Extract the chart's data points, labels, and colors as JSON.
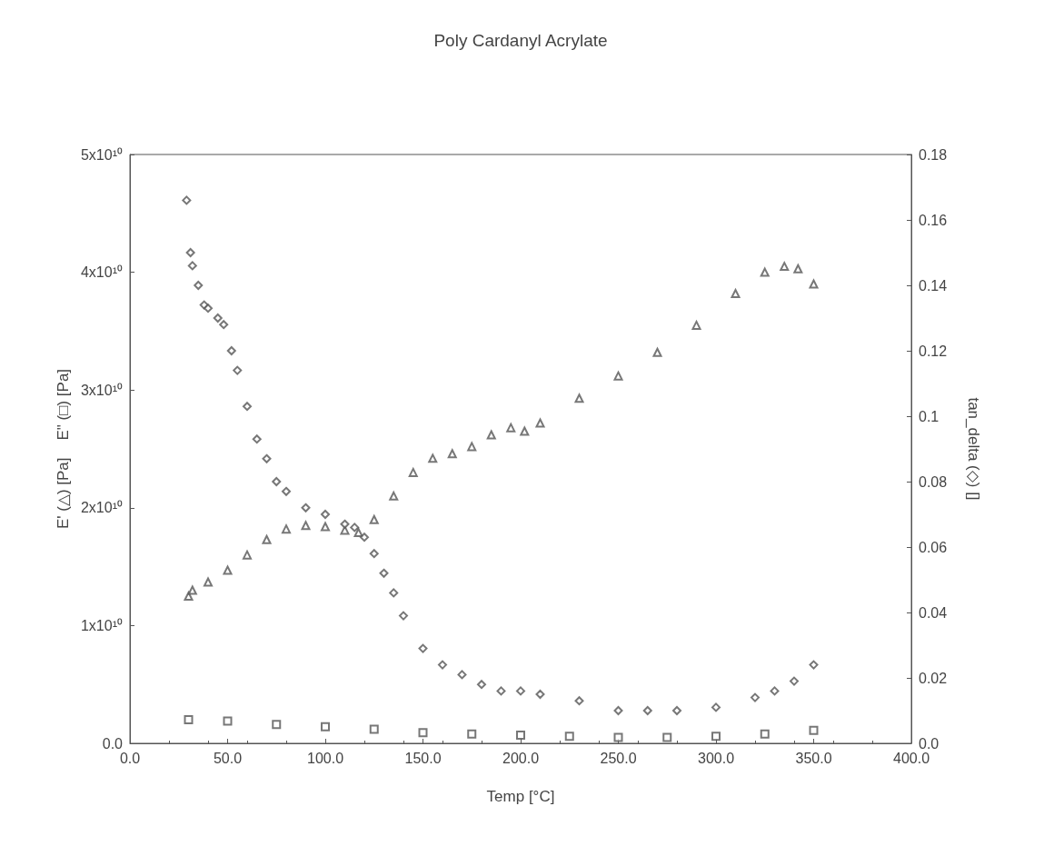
{
  "chart_data": {
    "type": "scatter",
    "title": "Poly Cardanyl Acrylate",
    "xlabel": "Temp [°C]",
    "ylabel": "E' (△) [Pa]    E\" (□) [Pa]",
    "y2label": "tan_delta (◇) []",
    "xlim": [
      0,
      400
    ],
    "xticks": [
      {
        "value": 0,
        "label": "0.0"
      },
      {
        "value": 50,
        "label": "50.0"
      },
      {
        "value": 100,
        "label": "100.0"
      },
      {
        "value": 150,
        "label": "150.0"
      },
      {
        "value": 200,
        "label": "200.0"
      },
      {
        "value": 250,
        "label": "250.0"
      },
      {
        "value": 300,
        "label": "300.0"
      },
      {
        "value": 350,
        "label": "350.0"
      },
      {
        "value": 400,
        "label": "400.0"
      }
    ],
    "ylim": [
      0,
      50000000000
    ],
    "yticks": [
      {
        "value": 0,
        "label": "0.0"
      },
      {
        "value": 10000000000,
        "label": "1x10¹⁰"
      },
      {
        "value": 20000000000,
        "label": "2x10¹⁰"
      },
      {
        "value": 30000000000,
        "label": "3x10¹⁰"
      },
      {
        "value": 40000000000,
        "label": "4x10¹⁰"
      },
      {
        "value": 50000000000,
        "label": "5x10¹⁰"
      }
    ],
    "y2lim": [
      0,
      0.18
    ],
    "y2ticks": [
      {
        "value": 0,
        "label": "0.0"
      },
      0.02,
      0.04,
      0.06,
      0.08,
      0.1,
      0.12,
      0.14,
      0.16,
      0.18
    ],
    "grid": false,
    "legend": false,
    "series": [
      {
        "marker": "triangle",
        "color": "#555555",
        "x": [
          30,
          32,
          40,
          50,
          60,
          70,
          80,
          90,
          100,
          110,
          117,
          125,
          135,
          145,
          155,
          165,
          175,
          185,
          195,
          202,
          210,
          230,
          250,
          270,
          290,
          310,
          325,
          335,
          342,
          350
        ],
        "values": [
          12500000000,
          13000000000,
          13700000000,
          14700000000,
          16000000000,
          17300000000,
          18200000000,
          18500000000,
          18400000000,
          18100000000,
          17900000000,
          19000000000,
          21000000000,
          23000000000,
          24200000000,
          24600000000,
          25200000000,
          26200000000,
          26800000000,
          26500000000,
          27200000000,
          29300000000,
          31200000000,
          33200000000,
          35500000000,
          38200000000,
          40000000000,
          40500000000,
          40300000000,
          39000000000
        ]
      },
      {
        "marker": "square",
        "color": "#555555",
        "x": [
          30,
          50,
          75,
          100,
          125,
          150,
          175,
          200,
          225,
          250,
          275,
          300,
          325,
          350
        ],
        "values": [
          2000000000,
          1900000000,
          1600000000,
          1400000000,
          1200000000,
          900000000,
          800000000,
          700000000,
          600000000,
          500000000,
          500000000,
          600000000,
          800000000,
          1100000000
        ]
      },
      {
        "marker": "diamond",
        "color": "#555555",
        "axis": "y2",
        "x": [
          29,
          31,
          32,
          35,
          38,
          40,
          45,
          48,
          52,
          55,
          60,
          65,
          70,
          75,
          80,
          90,
          100,
          110,
          115,
          120,
          125,
          130,
          135,
          140,
          150,
          160,
          170,
          180,
          190,
          200,
          210,
          230,
          250,
          265,
          280,
          300,
          320,
          330,
          340,
          350
        ],
        "values": [
          0.166,
          0.15,
          0.146,
          0.14,
          0.134,
          0.133,
          0.13,
          0.128,
          0.12,
          0.114,
          0.103,
          0.093,
          0.087,
          0.08,
          0.077,
          0.072,
          0.07,
          0.067,
          0.066,
          0.063,
          0.058,
          0.052,
          0.046,
          0.039,
          0.029,
          0.024,
          0.021,
          0.018,
          0.016,
          0.016,
          0.015,
          0.013,
          0.01,
          0.01,
          0.01,
          0.011,
          0.014,
          0.016,
          0.019,
          0.024
        ]
      }
    ]
  }
}
